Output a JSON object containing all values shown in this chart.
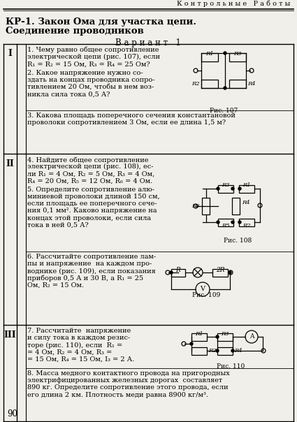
{
  "bg_color": "#f0efea",
  "header_text": "К о н т р о л ь н ы е   Р а б о т ы",
  "title_line1": "КР-1. Закон Ома для участка цепи.",
  "title_line2": "Соединение проводников",
  "variant": "В а р и а н т   1",
  "page_num": "90",
  "roman_I": "I",
  "roman_II": "II",
  "roman_III": "III"
}
